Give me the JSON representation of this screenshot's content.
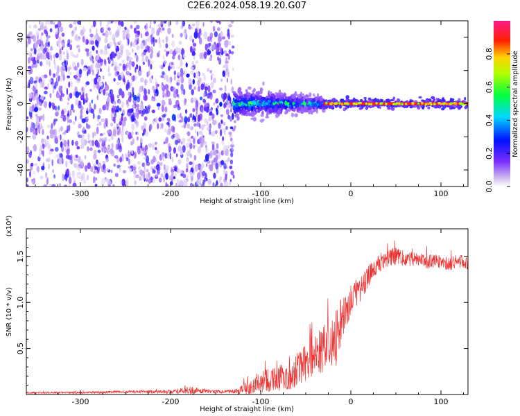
{
  "figure_title": "C2E6.2024.058.19.20.G07",
  "colors": {
    "snr_line": "#ee3333",
    "spectrum_low": "#c9b0f0",
    "spectrum_mid": "#5a1fe0",
    "spectrum_high": "#ff2020"
  },
  "chart_data": [
    {
      "type": "heatmap",
      "title": "",
      "xlabel": "Height of straight line (km)",
      "ylabel": "Frequency (Hz)",
      "xlim": [
        -360,
        130
      ],
      "ylim": [
        -50,
        50
      ],
      "xticks": [
        -300,
        -200,
        -100,
        0,
        100
      ],
      "xtick_labels": [
        "-300",
        "-200",
        "-100",
        "0",
        "100"
      ],
      "yticks": [
        -40,
        -20,
        0,
        20,
        40
      ],
      "ytick_labels": [
        "-40",
        "-20",
        "0",
        "20",
        "40"
      ],
      "colorbar": {
        "label": "Normalized spectral amplitude",
        "range": [
          0,
          1
        ],
        "ticks": [
          0.0,
          0.2,
          0.4,
          0.6,
          0.8
        ],
        "tick_labels": [
          "0.0",
          "0.2",
          "0.4",
          "0.6",
          "0.8"
        ]
      },
      "regions": [
        {
          "x_range": [
            -360,
            -130
          ],
          "freq_range": [
            -50,
            50
          ],
          "amplitude": [
            0.05,
            0.2
          ],
          "description": "broadband noise"
        },
        {
          "x_range": [
            -130,
            -30
          ],
          "freq_range": [
            -8,
            8
          ],
          "amplitude": [
            0.2,
            0.5
          ]
        },
        {
          "x_range": [
            -30,
            130
          ],
          "freq_range": [
            -2,
            2
          ],
          "amplitude": [
            0.8,
            0.95
          ]
        }
      ]
    },
    {
      "type": "line",
      "title": "",
      "xlabel": "Height of straight line (km)",
      "ylabel": "SNR (10 * v/v)",
      "scale_note": "(x10⁴)",
      "xlim": [
        -360,
        130
      ],
      "ylim": [
        0,
        1.8
      ],
      "xticks": [
        -300,
        -200,
        -100,
        0,
        100
      ],
      "xtick_labels": [
        "-300",
        "-200",
        "-100",
        "0",
        "100"
      ],
      "yticks": [
        0.5,
        1.0,
        1.5
      ],
      "ytick_labels": [
        "0.5",
        "1.0",
        "1.5"
      ],
      "series": [
        {
          "x": [
            -360,
            -300,
            -250,
            -200,
            -180,
            -150,
            -130,
            -120,
            -110,
            -100,
            -90,
            -80,
            -70,
            -60,
            -50,
            -40,
            -30,
            -20,
            -15,
            -10,
            -5,
            0,
            10,
            20,
            30,
            40,
            50,
            60,
            70,
            80,
            90,
            100,
            110,
            120,
            130
          ],
          "y": [
            0.02,
            0.02,
            0.03,
            0.03,
            0.05,
            0.03,
            0.03,
            0.05,
            0.1,
            0.14,
            0.16,
            0.18,
            0.2,
            0.26,
            0.35,
            0.42,
            0.48,
            0.55,
            0.65,
            0.82,
            0.92,
            1.02,
            1.12,
            1.3,
            1.42,
            1.48,
            1.5,
            1.48,
            1.47,
            1.45,
            1.44,
            1.43,
            1.42,
            1.45,
            1.44
          ],
          "noise": [
            0.01,
            0.01,
            0.015,
            0.02,
            0.04,
            0.02,
            0.02,
            0.05,
            0.1,
            0.12,
            0.13,
            0.14,
            0.15,
            0.18,
            0.22,
            0.25,
            0.28,
            0.3,
            0.32,
            0.25,
            0.2,
            0.18,
            0.15,
            0.12,
            0.1,
            0.1,
            0.1,
            0.08,
            0.08,
            0.08,
            0.08,
            0.08,
            0.08,
            0.08,
            0.08
          ]
        }
      ]
    }
  ]
}
